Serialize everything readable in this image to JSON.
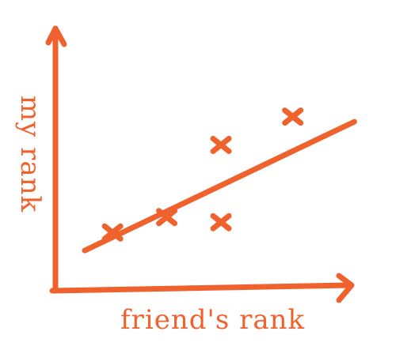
{
  "colors": {
    "ink": "#f0622d",
    "background": "#ffffff"
  },
  "chart_data": {
    "type": "scatter",
    "title": "",
    "xlabel": "friend's rank",
    "ylabel": "my rank",
    "xlim": [
      0,
      10
    ],
    "ylim": [
      0,
      10
    ],
    "grid": false,
    "axis_ticks": false,
    "points": [
      {
        "x": 1.95,
        "y": 2.2
      },
      {
        "x": 3.8,
        "y": 2.8
      },
      {
        "x": 5.65,
        "y": 2.6
      },
      {
        "x": 5.65,
        "y": 5.6
      },
      {
        "x": 8.1,
        "y": 6.7
      }
    ],
    "trend_line": {
      "x": [
        1.0,
        10.2
      ],
      "y": [
        1.5,
        6.5
      ]
    }
  }
}
